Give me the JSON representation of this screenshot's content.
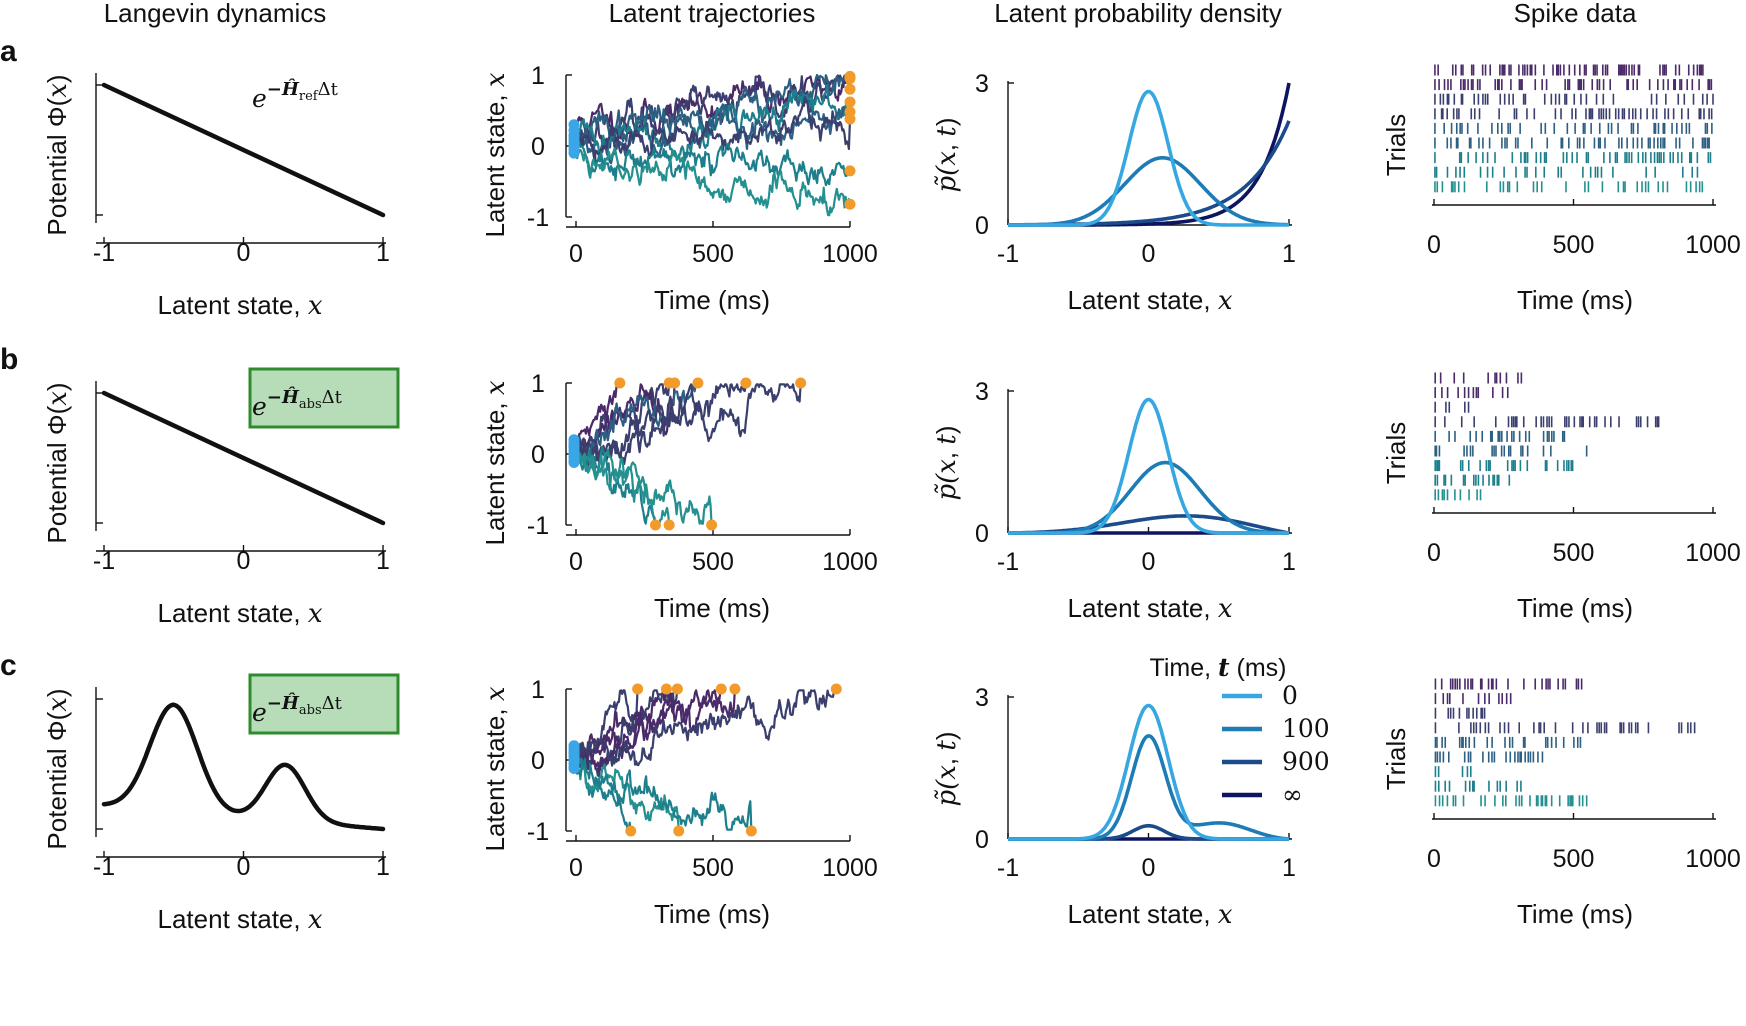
{
  "column_titles": [
    "Langevin dynamics",
    "Latent trajectories",
    "Latent probability density",
    "Spike data"
  ],
  "colors": {
    "ink": "#111111",
    "start_dot": "#3aa6e8",
    "end_dot": "#f29b2a",
    "formula_box_fill": "#b7dcb8",
    "formula_box_stroke": "#2e8b2e",
    "density": [
      "#37a7e1",
      "#1d7bb5",
      "#1b4b8a",
      "#0d1561"
    ],
    "trajectories": [
      "#4a2a68",
      "#3a3f6e",
      "#2d5f82",
      "#1d7f8c",
      "#24908f"
    ]
  },
  "rows": [
    {
      "label": "a",
      "formula": {
        "base": "e",
        "exp": "−Ĥ",
        "sub": "ref",
        "tail": "Δt",
        "boxed": false
      },
      "chart_data": [
        {
          "type": "line",
          "title": "",
          "xlabel": "Latent state, x",
          "ylabel": "Potential Φ(x)",
          "xlim": [
            -1,
            1
          ],
          "ylim": [
            0,
            1
          ],
          "xticks": [
            "-1",
            "0",
            "1"
          ],
          "series": [
            {
              "name": "potential",
              "x": [
                -1,
                1
              ],
              "y": [
                1,
                0
              ]
            }
          ]
        },
        {
          "type": "line",
          "xlabel": "Time (ms)",
          "ylabel": "Latent state, x",
          "xlim": [
            0,
            1000
          ],
          "ylim": [
            -1,
            1
          ],
          "xticks": [
            "0",
            "500",
            "1000"
          ],
          "yticks": [
            "-1",
            "0",
            "1"
          ],
          "boundary": "reflecting",
          "trajectories": [
            {
              "seed": 11,
              "start": 0.3,
              "end_time": 1000,
              "end": 0.95,
              "drift": 0.0025,
              "color": 0
            },
            {
              "seed": 23,
              "start": 0.22,
              "end_time": 1000,
              "end": 0.8,
              "drift": 0.002,
              "color": 1
            },
            {
              "seed": 37,
              "start": 0.15,
              "end_time": 1000,
              "end": 0.98,
              "drift": 0.0025,
              "color": 2
            },
            {
              "seed": 41,
              "start": 0.1,
              "end_time": 1000,
              "end": 0.62,
              "drift": 0.0015,
              "color": 3
            },
            {
              "seed": 53,
              "start": 0.05,
              "end_time": 1000,
              "end": 0.48,
              "drift": 0.0012,
              "color": 2
            },
            {
              "seed": 61,
              "start": 0.0,
              "end_time": 1000,
              "end": 0.38,
              "drift": 0.001,
              "color": 1
            },
            {
              "seed": 73,
              "start": -0.05,
              "end_time": 1000,
              "end": -0.35,
              "drift": 0.0,
              "color": 3
            },
            {
              "seed": 89,
              "start": -0.1,
              "end_time": 1000,
              "end": -0.82,
              "drift": -0.001,
              "color": 4
            }
          ]
        },
        {
          "type": "line",
          "xlabel": "Latent state, x",
          "ylabel": "p̃(x, t)",
          "xlim": [
            -1,
            1
          ],
          "ylim": [
            0,
            3
          ],
          "xticks": [
            "-1",
            "0",
            "1"
          ],
          "yticks": [
            "0",
            "3"
          ],
          "series": [
            {
              "name": "0",
              "kind": "gauss",
              "mu": 0.0,
              "sigma": 0.14,
              "amp": 2.82
            },
            {
              "name": "100",
              "kind": "gauss",
              "mu": 0.1,
              "sigma": 0.27,
              "amp": 1.42
            },
            {
              "name": "900",
              "kind": "exp",
              "a": 2.2,
              "k": 3.2
            },
            {
              "name": "∞",
              "kind": "exp",
              "a": 3.0,
              "k": 5.0
            }
          ]
        },
        {
          "type": "raster",
          "xlabel": "Time (ms)",
          "ylabel": "Trials",
          "xlim": [
            0,
            1000
          ],
          "xticks": [
            "0",
            "500",
            "1000"
          ],
          "trials": [
            {
              "seed": 101,
              "end": 970,
              "rate": 0.055,
              "color": 0
            },
            {
              "seed": 102,
              "end": 1000,
              "rate": 0.05,
              "color": 0
            },
            {
              "seed": 103,
              "end": 1000,
              "rate": 0.045,
              "color": 1
            },
            {
              "seed": 104,
              "end": 1000,
              "rate": 0.045,
              "color": 1
            },
            {
              "seed": 105,
              "end": 1000,
              "rate": 0.04,
              "color": 2
            },
            {
              "seed": 106,
              "end": 1000,
              "rate": 0.04,
              "color": 2
            },
            {
              "seed": 107,
              "end": 1000,
              "rate": 0.035,
              "color": 3
            },
            {
              "seed": 108,
              "end": 1000,
              "rate": 0.03,
              "color": 3
            },
            {
              "seed": 109,
              "end": 1000,
              "rate": 0.03,
              "color": 4
            }
          ]
        }
      ]
    },
    {
      "label": "b",
      "formula": {
        "base": "e",
        "exp": "−Ĥ",
        "sub": "abs",
        "tail": "Δt",
        "boxed": true
      },
      "chart_data": [
        {
          "type": "line",
          "xlabel": "Latent state, x",
          "ylabel": "Potential Φ(x)",
          "xlim": [
            -1,
            1
          ],
          "ylim": [
            0,
            1
          ],
          "xticks": [
            "-1",
            "0",
            "1"
          ],
          "series": [
            {
              "name": "potential",
              "x": [
                -1,
                1
              ],
              "y": [
                1,
                0
              ]
            }
          ]
        },
        {
          "type": "line",
          "xlabel": "Time (ms)",
          "ylabel": "Latent state, x",
          "xlim": [
            0,
            1000
          ],
          "ylim": [
            -1,
            1
          ],
          "xticks": [
            "0",
            "500",
            "1000"
          ],
          "yticks": [
            "-1",
            "0",
            "1"
          ],
          "boundary": "absorbing",
          "trajectories": [
            {
              "seed": 201,
              "start": 0.2,
              "end_time": 160,
              "end": 1,
              "color": 0
            },
            {
              "seed": 202,
              "start": 0.15,
              "end_time": 340,
              "end": 1,
              "color": 1
            },
            {
              "seed": 203,
              "start": 0.1,
              "end_time": 360,
              "end": 1,
              "color": 0
            },
            {
              "seed": 204,
              "start": 0.05,
              "end_time": 445,
              "end": 1,
              "color": 2
            },
            {
              "seed": 205,
              "start": 0.0,
              "end_time": 620,
              "end": 1,
              "color": 1
            },
            {
              "seed": 206,
              "start": 0.12,
              "end_time": 820,
              "end": 1,
              "color": 1
            },
            {
              "seed": 207,
              "start": -0.05,
              "end_time": 290,
              "end": -1,
              "color": 3
            },
            {
              "seed": 208,
              "start": -0.1,
              "end_time": 340,
              "end": -1,
              "color": 4
            },
            {
              "seed": 209,
              "start": -0.12,
              "end_time": 495,
              "end": -1,
              "color": 4
            }
          ]
        },
        {
          "type": "line",
          "xlabel": "Latent state, x",
          "ylabel": "p̃(x, t)",
          "xlim": [
            -1,
            1
          ],
          "ylim": [
            0,
            3
          ],
          "xticks": [
            "-1",
            "0",
            "1"
          ],
          "yticks": [
            "0",
            "3"
          ],
          "series": [
            {
              "name": "0",
              "kind": "gauss",
              "mu": 0.0,
              "sigma": 0.14,
              "amp": 2.82
            },
            {
              "name": "100",
              "kind": "gauss",
              "mu": 0.1,
              "sigma": 0.27,
              "amp": 1.42
            },
            {
              "name": "900",
              "kind": "sine",
              "amp": 0.38,
              "peak": 0.55
            },
            {
              "name": "∞",
              "kind": "zero"
            }
          ]
        },
        {
          "type": "raster",
          "xlabel": "Time (ms)",
          "ylabel": "Trials",
          "xlim": [
            0,
            1000
          ],
          "xticks": [
            "0",
            "500",
            "1000"
          ],
          "trials": [
            {
              "seed": 301,
              "end": 330,
              "rate": 0.04,
              "color": 0
            },
            {
              "seed": 302,
              "end": 275,
              "rate": 0.04,
              "color": 0
            },
            {
              "seed": 303,
              "end": 130,
              "rate": 0.03,
              "color": 1
            },
            {
              "seed": 304,
              "end": 810,
              "rate": 0.045,
              "color": 1
            },
            {
              "seed": 305,
              "end": 470,
              "rate": 0.045,
              "color": 2
            },
            {
              "seed": 306,
              "end": 620,
              "rate": 0.045,
              "color": 2
            },
            {
              "seed": 307,
              "end": 505,
              "rate": 0.045,
              "color": 3
            },
            {
              "seed": 308,
              "end": 300,
              "rate": 0.045,
              "color": 3
            },
            {
              "seed": 309,
              "end": 290,
              "rate": 0.035,
              "color": 4
            }
          ]
        }
      ]
    },
    {
      "label": "c",
      "formula": {
        "base": "e",
        "exp": "−Ĥ",
        "sub": "abs",
        "tail": "Δt",
        "boxed": true
      },
      "chart_data": [
        {
          "type": "line",
          "xlabel": "Latent state, x",
          "ylabel": "Potential Φ(x)",
          "xlim": [
            -1,
            1
          ],
          "ylim": [
            0,
            1
          ],
          "xticks": [
            "-1",
            "0",
            "1"
          ],
          "series": [
            {
              "name": "potential",
              "kind": "double-well"
            }
          ]
        },
        {
          "type": "line",
          "xlabel": "Time (ms)",
          "ylabel": "Latent state, x",
          "xlim": [
            0,
            1000
          ],
          "ylim": [
            -1,
            1
          ],
          "xticks": [
            "0",
            "500",
            "1000"
          ],
          "yticks": [
            "-1",
            "0",
            "1"
          ],
          "boundary": "absorbing",
          "trajectories": [
            {
              "seed": 401,
              "start": 0.2,
              "end_time": 225,
              "end": 1,
              "color": 1
            },
            {
              "seed": 402,
              "start": 0.15,
              "end_time": 330,
              "end": 1,
              "color": 0
            },
            {
              "seed": 403,
              "start": 0.1,
              "end_time": 370,
              "end": 1,
              "color": 1
            },
            {
              "seed": 404,
              "start": 0.05,
              "end_time": 530,
              "end": 1,
              "color": 0
            },
            {
              "seed": 405,
              "start": 0.0,
              "end_time": 580,
              "end": 1,
              "color": 0
            },
            {
              "seed": 406,
              "start": 0.1,
              "end_time": 950,
              "end": 1,
              "color": 1
            },
            {
              "seed": 407,
              "start": -0.05,
              "end_time": 200,
              "end": -1,
              "color": 3
            },
            {
              "seed": 408,
              "start": -0.1,
              "end_time": 375,
              "end": -1,
              "color": 4
            },
            {
              "seed": 409,
              "start": -0.12,
              "end_time": 640,
              "end": -1,
              "color": 3
            }
          ]
        },
        {
          "type": "line",
          "xlabel": "Latent state, x",
          "ylabel": "p̃(x, t)",
          "xlim": [
            -1,
            1
          ],
          "ylim": [
            0,
            3
          ],
          "xticks": [
            "-1",
            "0",
            "1"
          ],
          "yticks": [
            "0",
            "3"
          ],
          "series": [
            {
              "name": "0",
              "kind": "gauss",
              "mu": 0.0,
              "sigma": 0.14,
              "amp": 2.82
            },
            {
              "name": "100",
              "kind": "gauss2",
              "mu": 0.0,
              "sigma": 0.12,
              "amp": 2.15,
              "mu2": 0.6,
              "sigma2": 0.25,
              "amp2": 0.52
            },
            {
              "name": "900",
              "kind": "gauss",
              "mu": 0.0,
              "sigma": 0.11,
              "amp": 0.28
            },
            {
              "name": "∞",
              "kind": "zero"
            }
          ],
          "legend": {
            "title": "Time, t (ms)",
            "entries": [
              "0",
              "100",
              "900",
              "∞"
            ],
            "position": "top-right"
          }
        },
        {
          "type": "raster",
          "xlabel": "Time (ms)",
          "ylabel": "Trials",
          "xlim": [
            0,
            1000
          ],
          "xticks": [
            "0",
            "500",
            "1000"
          ],
          "trials": [
            {
              "seed": 501,
              "end": 545,
              "rate": 0.05,
              "color": 0
            },
            {
              "seed": 502,
              "end": 315,
              "rate": 0.05,
              "color": 0
            },
            {
              "seed": 503,
              "end": 210,
              "rate": 0.04,
              "color": 1
            },
            {
              "seed": 504,
              "end": 945,
              "rate": 0.045,
              "color": 1
            },
            {
              "seed": 505,
              "end": 525,
              "rate": 0.045,
              "color": 2
            },
            {
              "seed": 506,
              "end": 390,
              "rate": 0.045,
              "color": 2
            },
            {
              "seed": 507,
              "end": 165,
              "rate": 0.03,
              "color": 3
            },
            {
              "seed": 508,
              "end": 330,
              "rate": 0.04,
              "color": 3
            },
            {
              "seed": 509,
              "end": 555,
              "rate": 0.04,
              "color": 4
            }
          ]
        }
      ]
    }
  ]
}
